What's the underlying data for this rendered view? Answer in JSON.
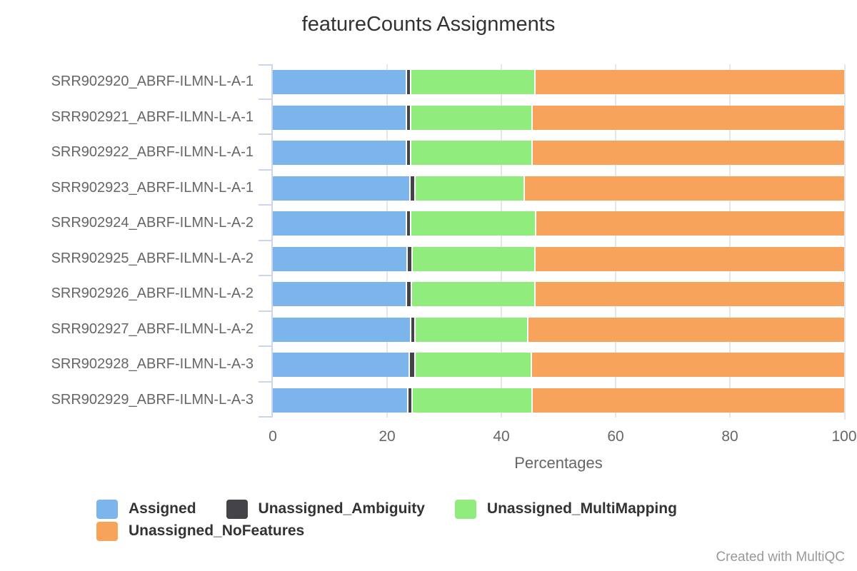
{
  "title": "featureCounts Assignments",
  "watermark": "Created with MultiQC",
  "colors": {
    "assigned": "#7cb5ec",
    "unassigned_ambiguity": "#434348",
    "unassigned_multimapping": "#90ed7d",
    "unassigned_nofeatures": "#f7a35c",
    "axis_line": "#ccd6eb",
    "gridline": "#e6e6e6",
    "axis_text": "#666666",
    "title_text": "#333333",
    "legend_text": "#333333",
    "watermark_text": "#999999"
  },
  "chart_data": {
    "type": "bar",
    "orientation": "horizontal",
    "stacked": true,
    "title": "featureCounts Assignments",
    "xlabel": "Percentages",
    "ylabel": "",
    "xlim": [
      0,
      100
    ],
    "x_ticks": [
      0,
      20,
      40,
      60,
      80,
      100
    ],
    "grid": true,
    "legend_position": "bottom",
    "categories": [
      "SRR902920_ABRF-ILMN-L-A-1",
      "SRR902921_ABRF-ILMN-L-A-1",
      "SRR902922_ABRF-ILMN-L-A-1",
      "SRR902923_ABRF-ILMN-L-A-1",
      "SRR902924_ABRF-ILMN-L-A-2",
      "SRR902925_ABRF-ILMN-L-A-2",
      "SRR902926_ABRF-ILMN-L-A-2",
      "SRR902927_ABRF-ILMN-L-A-2",
      "SRR902928_ABRF-ILMN-L-A-3",
      "SRR902929_ABRF-ILMN-L-A-3"
    ],
    "series": [
      {
        "name": "Assigned",
        "color": "#7cb5ec",
        "values": [
          23.3,
          23.3,
          23.3,
          23.9,
          23.3,
          23.4,
          23.3,
          24.0,
          23.8,
          23.5
        ]
      },
      {
        "name": "Unassigned_Ambiguity",
        "color": "#434348",
        "values": [
          0.7,
          0.7,
          0.7,
          0.9,
          0.7,
          0.8,
          0.8,
          0.8,
          0.9,
          0.7
        ]
      },
      {
        "name": "Unassigned_MultiMapping",
        "color": "#90ed7d",
        "values": [
          21.8,
          21.2,
          21.3,
          19.1,
          21.9,
          21.5,
          21.7,
          19.7,
          20.4,
          21.0
        ]
      },
      {
        "name": "Unassigned_NoFeatures",
        "color": "#f7a35c",
        "values": [
          54.2,
          54.8,
          54.7,
          56.1,
          54.1,
          54.3,
          54.2,
          55.5,
          54.9,
          54.8
        ]
      }
    ]
  }
}
